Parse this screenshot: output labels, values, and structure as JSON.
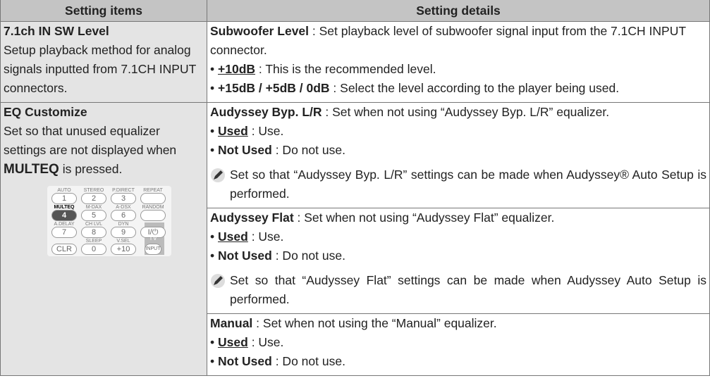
{
  "header": {
    "col1": "Setting items",
    "col2": "Setting details"
  },
  "rows": [
    {
      "item": {
        "title": "7.1ch IN SW Level",
        "description": "Setup playback method for analog signals inputted from 7.1CH INPUT connectors."
      },
      "details": [
        {
          "term": "Subwoofer Level",
          "text": ": Set playback level of subwoofer signal input from the 7.1CH INPUT connector.",
          "options": [
            {
              "label": "+10dB",
              "text": ": This is the recommended level."
            },
            {
              "label": "+15dB / +5dB / 0dB",
              "text": ": Select the level according to the player being used."
            }
          ]
        }
      ]
    },
    {
      "item": {
        "title": "EQ Customize",
        "description_before": "Set so that unused equalizer settings are not displayed when",
        "description_key": "MULTEQ",
        "description_after": "is pressed."
      },
      "remote": {
        "labels": [
          [
            "AUTO",
            "STEREO",
            "P.DIRECT",
            "REPEAT"
          ],
          [
            "MULTEQ",
            "M-DAX",
            "A-DSX",
            "RANDOM"
          ],
          [
            "A.DELAY",
            "CH LVL",
            "DYN EQ/VOL",
            null
          ],
          [
            null,
            "SLEEP",
            "V.SEL",
            null
          ]
        ],
        "buttons": [
          [
            "1",
            "2",
            "3",
            null
          ],
          [
            "4",
            "5",
            "6",
            null
          ],
          [
            "7",
            "8",
            "9",
            "I/⏻"
          ],
          [
            "CLR",
            "0",
            "+10",
            "INPUT"
          ]
        ],
        "side_label": "TV"
      },
      "details": [
        {
          "term": "Audyssey Byp. L/R",
          "text": ": Set when not using “Audyssey Byp. L/R” equalizer.",
          "options": [
            {
              "label": "Used",
              "text": ": Use."
            },
            {
              "label": "Not Used",
              "text": ": Do not use."
            }
          ],
          "note": "Set so that “Audyssey Byp. L/R” settings can be made when Audyssey® Auto Setup is performed."
        },
        {
          "term": "Audyssey Flat",
          "text": ": Set when not using “Audyssey Flat” equalizer.",
          "options": [
            {
              "label": "Used",
              "text": ": Use."
            },
            {
              "label": "Not Used",
              "text": ": Do not use."
            }
          ],
          "note": "Set so that “Audyssey Flat” settings can be made when Audyssey Auto Setup is performed."
        },
        {
          "term": "Manual",
          "text": ": Set when not using the “Manual” equalizer.",
          "options": [
            {
              "label": "Used",
              "text": ": Use."
            },
            {
              "label": "Not Used",
              "text": ": Do not use."
            }
          ]
        }
      ]
    }
  ]
}
